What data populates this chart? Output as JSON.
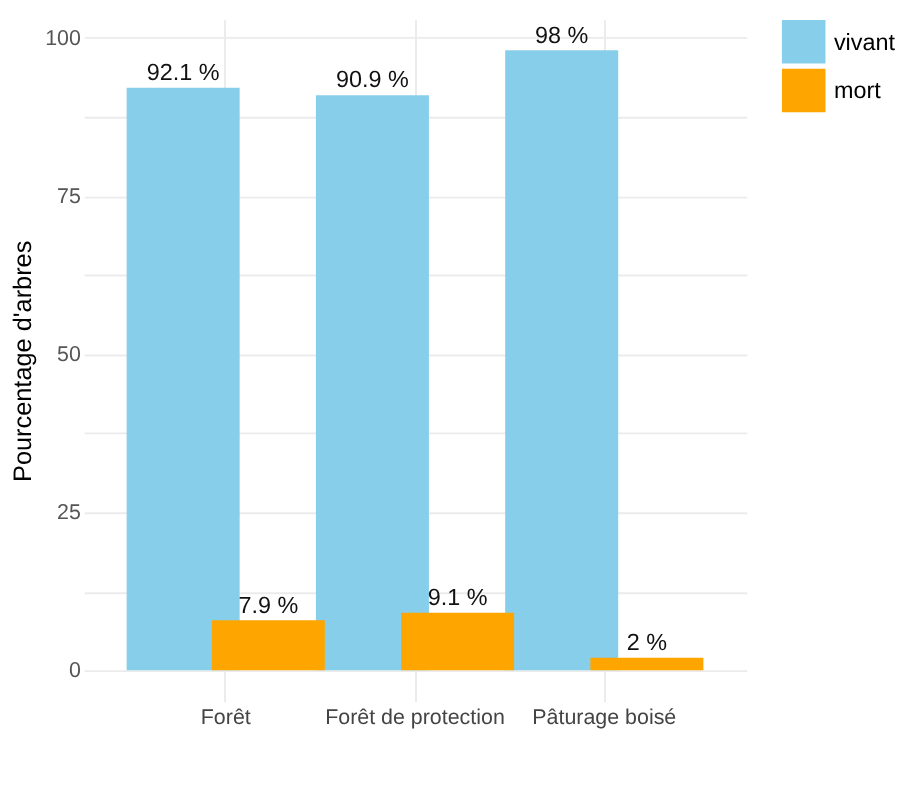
{
  "chart_data": {
    "type": "bar",
    "ylabel": "Pourcentage d'arbres",
    "categories": [
      "Forêt",
      "Forêt de protection",
      "Pâturage boisé"
    ],
    "series": [
      {
        "name": "vivant",
        "color": "#87ceeb",
        "values": [
          92.1,
          90.9,
          98
        ],
        "value_labels": [
          "92.1 %",
          "90.9 %",
          "98 %"
        ]
      },
      {
        "name": "mort",
        "color": "#ffa500",
        "values": [
          7.9,
          9.1,
          2
        ],
        "value_labels": [
          "7.9 %",
          "9.1 %",
          "2 %"
        ]
      }
    ],
    "ylim": [
      -4.9,
      102.9
    ],
    "yticks": [
      0,
      {
        "value": 12.5,
        "label": null
      },
      25,
      {
        "value": 37.5,
        "label": null
      },
      50,
      {
        "value": 62.5,
        "label": null
      },
      75,
      {
        "value": 87.5,
        "label": null
      },
      100
    ],
    "grid": true,
    "legend": "top right"
  }
}
